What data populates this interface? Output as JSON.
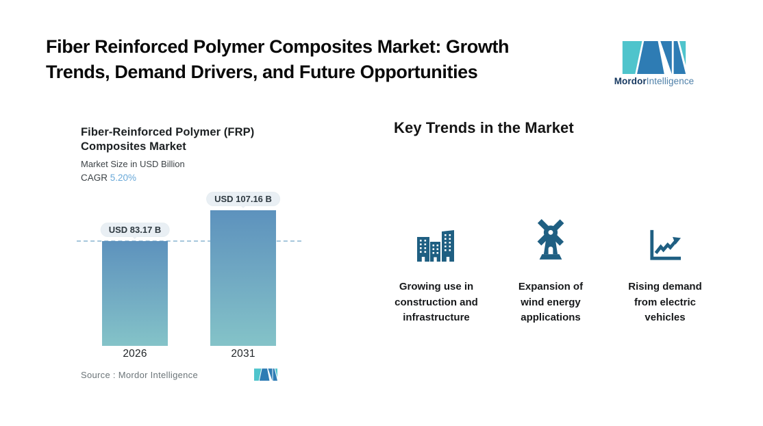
{
  "header": {
    "title_line1": "Fiber Reinforced Polymer Composites Market: Growth",
    "title_line2": "Trends, Demand Drivers, and Future Opportunities",
    "brand_bold": "Mordor",
    "brand_light": "Intelligence"
  },
  "chart": {
    "title_line1": "Fiber-Reinforced Polymer (FRP)",
    "title_line2": "Composites Market",
    "subtitle": "Market Size in USD Billion",
    "cagr_label": "CAGR",
    "cagr_value": "5.20%",
    "source_label": "Source :",
    "source_value": "Mordor Intelligence"
  },
  "chart_data": {
    "type": "bar",
    "title": "Fiber-Reinforced Polymer (FRP) Composites Market",
    "ylabel": "Market Size in USD Billion",
    "categories": [
      "2026",
      "2031"
    ],
    "values": [
      83.17,
      107.16
    ],
    "value_labels": [
      "USD 83.17 B",
      "USD 107.16 B"
    ],
    "cagr": "5.20%",
    "reference_line_value": 83.17,
    "grid": false,
    "legend": "none",
    "colors": {
      "bar_gradient_top": "#5d92bd",
      "bar_gradient_bottom": "#84c3c8",
      "reference_line": "#a6c6dc",
      "value_badge_bg": "#e9eff4",
      "cagr_value": "#68a8d8"
    }
  },
  "trends": {
    "heading": "Key Trends in the Market",
    "items": [
      {
        "icon": "buildings-icon",
        "label": "Growing use in construction and infrastructure"
      },
      {
        "icon": "windmill-icon",
        "label": "Expansion of wind energy applications"
      },
      {
        "icon": "chart-increase-icon",
        "label": "Rising demand from electric vehicles"
      }
    ],
    "icon_color": "#1f5f82"
  },
  "brand_colors": {
    "dark_blue": "#2e7cb4",
    "teal": "#4fc4cc"
  }
}
